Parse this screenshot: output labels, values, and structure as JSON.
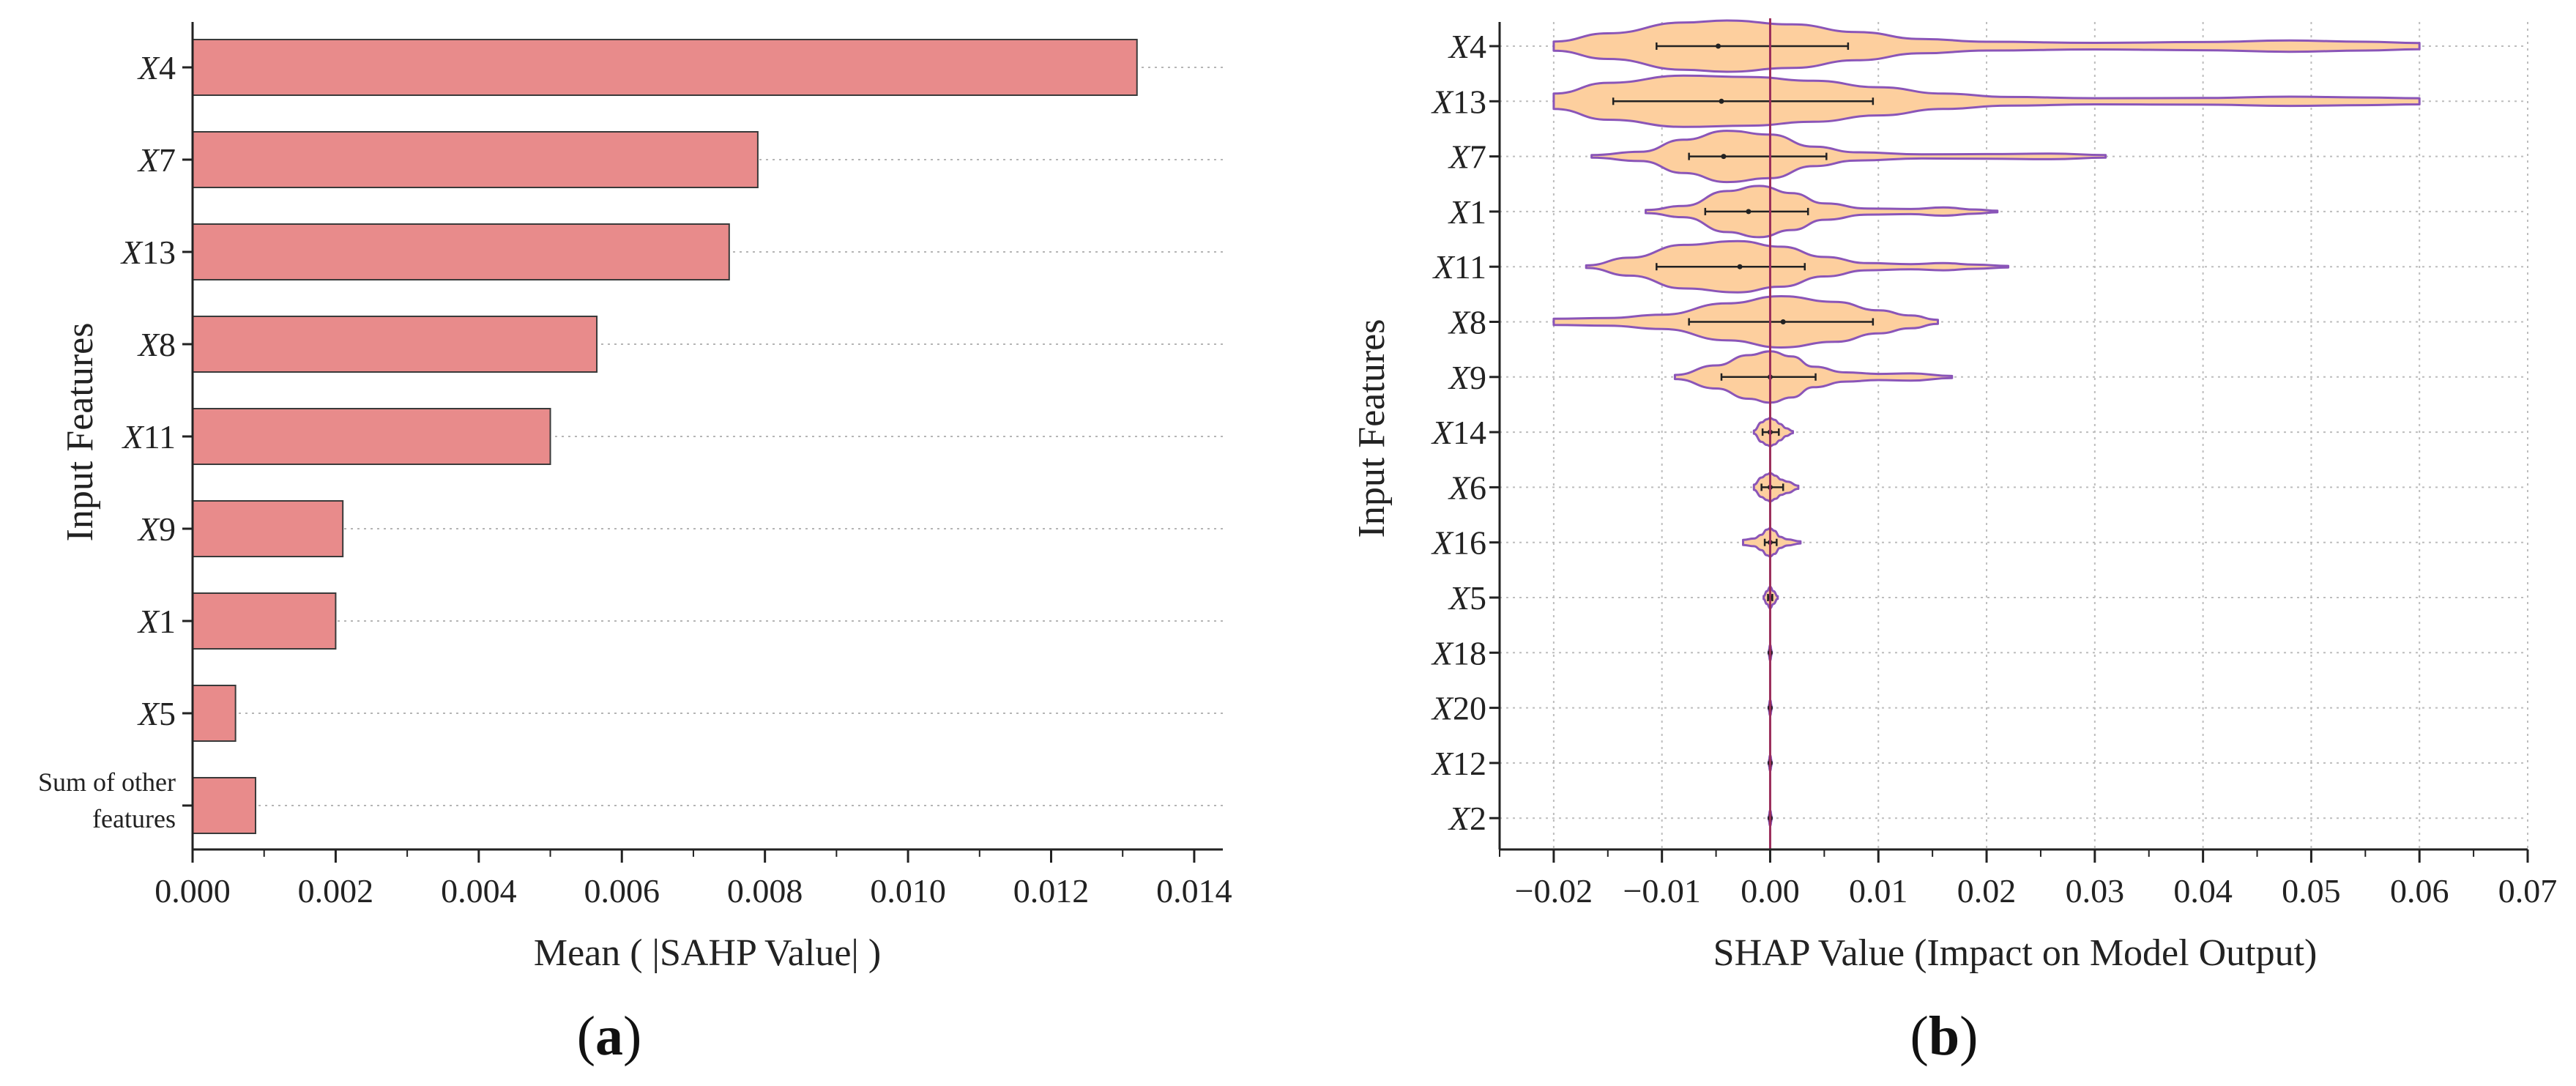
{
  "figure": {
    "label_a": "a",
    "label_b": "b"
  },
  "chart_data": [
    {
      "type": "bar",
      "orientation": "horizontal",
      "title": "",
      "xlabel": "Mean ( |SAHP Value| )",
      "ylabel": "Input Features",
      "categories": [
        "X4",
        "X7",
        "X13",
        "X8",
        "X11",
        "X9",
        "X1",
        "X5",
        "Sum of other features"
      ],
      "category_display": [
        {
          "base": "X",
          "sub": "4"
        },
        {
          "base": "X",
          "sub": "7"
        },
        {
          "base": "X",
          "sub": "13"
        },
        {
          "base": "X",
          "sub": "8"
        },
        {
          "base": "X",
          "sub": "11"
        },
        {
          "base": "X",
          "sub": "9"
        },
        {
          "base": "X",
          "sub": "1"
        },
        {
          "base": "X",
          "sub": "5"
        },
        {
          "lines": [
            "Sum of other",
            "features"
          ]
        }
      ],
      "values": [
        0.0132,
        0.0079,
        0.0075,
        0.00565,
        0.005,
        0.0021,
        0.002,
        0.0006,
        0.00088
      ],
      "xlim": [
        0,
        0.0144
      ],
      "xticks": [
        0,
        0.002,
        0.004,
        0.006,
        0.008,
        0.01,
        0.012,
        0.014
      ],
      "xtick_labels": [
        "0.000",
        "0.002",
        "0.004",
        "0.006",
        "0.008",
        "0.010",
        "0.012",
        "0.014"
      ],
      "grid": "horizontal dotted",
      "colors": {
        "bar": "#e88b8b",
        "edge": "#3a3a3a"
      }
    },
    {
      "type": "violin",
      "title": "",
      "xlabel": "SHAP Value (Impact on Model Output)",
      "ylabel": "Input Features",
      "categories": [
        "X4",
        "X13",
        "X7",
        "X1",
        "X11",
        "X8",
        "X9",
        "X14",
        "X6",
        "X16",
        "X5",
        "X18",
        "X20",
        "X12",
        "X2"
      ],
      "xlim": [
        -0.025,
        0.07
      ],
      "xticks": [
        -0.02,
        -0.01,
        0.0,
        0.01,
        0.02,
        0.03,
        0.04,
        0.05,
        0.06,
        0.07
      ],
      "xtick_labels": [
        "−0.02",
        "−0.01",
        "0.00",
        "0.01",
        "0.02",
        "0.03",
        "0.04",
        "0.05",
        "0.06",
        "0.07"
      ],
      "grid": "both dotted",
      "reference_line_x": 0.0,
      "colors": {
        "fill": "#fdcf9e",
        "edge": "#8a55b8",
        "whisker": "#222222",
        "refline": "#9b2d5b"
      },
      "series": [
        {
          "name": "X4",
          "min": -0.02,
          "max": 0.06,
          "q1": -0.0105,
          "median": -0.0048,
          "q3": 0.0072,
          "profile": [
            [
              -0.02,
              0.18
            ],
            [
              -0.015,
              0.5
            ],
            [
              -0.008,
              0.92
            ],
            [
              -0.004,
              1.0
            ],
            [
              0.002,
              0.85
            ],
            [
              0.008,
              0.55
            ],
            [
              0.014,
              0.28
            ],
            [
              0.02,
              0.17
            ],
            [
              0.03,
              0.13
            ],
            [
              0.04,
              0.16
            ],
            [
              0.048,
              0.22
            ],
            [
              0.055,
              0.17
            ],
            [
              0.06,
              0.12
            ]
          ]
        },
        {
          "name": "X13",
          "min": -0.02,
          "max": 0.06,
          "q1": -0.0145,
          "median": -0.0045,
          "q3": 0.0095,
          "profile": [
            [
              -0.02,
              0.3
            ],
            [
              -0.015,
              0.72
            ],
            [
              -0.008,
              1.0
            ],
            [
              -0.002,
              0.95
            ],
            [
              0.004,
              0.8
            ],
            [
              0.01,
              0.55
            ],
            [
              0.016,
              0.3
            ],
            [
              0.022,
              0.17
            ],
            [
              0.03,
              0.12
            ],
            [
              0.04,
              0.13
            ],
            [
              0.048,
              0.18
            ],
            [
              0.055,
              0.15
            ],
            [
              0.06,
              0.12
            ]
          ]
        },
        {
          "name": "X7",
          "min": -0.0165,
          "max": 0.031,
          "q1": -0.0075,
          "median": -0.0043,
          "q3": 0.0052,
          "profile": [
            [
              -0.0165,
              0.05
            ],
            [
              -0.012,
              0.18
            ],
            [
              -0.008,
              0.65
            ],
            [
              -0.004,
              1.0
            ],
            [
              0.0,
              0.85
            ],
            [
              0.004,
              0.38
            ],
            [
              0.008,
              0.16
            ],
            [
              0.014,
              0.08
            ],
            [
              0.02,
              0.09
            ],
            [
              0.026,
              0.11
            ],
            [
              0.031,
              0.05
            ]
          ]
        },
        {
          "name": "X1",
          "min": -0.0115,
          "max": 0.021,
          "q1": -0.006,
          "median": -0.002,
          "q3": 0.0035,
          "profile": [
            [
              -0.0115,
              0.06
            ],
            [
              -0.008,
              0.22
            ],
            [
              -0.004,
              0.8
            ],
            [
              -0.001,
              1.0
            ],
            [
              0.002,
              0.72
            ],
            [
              0.005,
              0.32
            ],
            [
              0.009,
              0.12
            ],
            [
              0.013,
              0.1
            ],
            [
              0.016,
              0.16
            ],
            [
              0.019,
              0.08
            ],
            [
              0.021,
              0.03
            ]
          ]
        },
        {
          "name": "X11",
          "min": -0.017,
          "max": 0.022,
          "q1": -0.0105,
          "median": -0.0028,
          "q3": 0.0032,
          "profile": [
            [
              -0.017,
              0.05
            ],
            [
              -0.013,
              0.35
            ],
            [
              -0.008,
              0.85
            ],
            [
              -0.003,
              1.0
            ],
            [
              0.001,
              0.78
            ],
            [
              0.005,
              0.38
            ],
            [
              0.009,
              0.14
            ],
            [
              0.013,
              0.1
            ],
            [
              0.016,
              0.14
            ],
            [
              0.019,
              0.08
            ],
            [
              0.022,
              0.03
            ]
          ]
        },
        {
          "name": "X8",
          "min": -0.02,
          "max": 0.0155,
          "q1": -0.0075,
          "median": 0.0012,
          "q3": 0.0095,
          "profile": [
            [
              -0.02,
              0.12
            ],
            [
              -0.015,
              0.15
            ],
            [
              -0.01,
              0.28
            ],
            [
              -0.004,
              0.72
            ],
            [
              0.001,
              1.0
            ],
            [
              0.006,
              0.78
            ],
            [
              0.01,
              0.45
            ],
            [
              0.013,
              0.25
            ],
            [
              0.0155,
              0.08
            ]
          ]
        },
        {
          "name": "X9",
          "min": -0.0088,
          "max": 0.0168,
          "q1": -0.0045,
          "median": 0.0,
          "q3": 0.0042,
          "profile": [
            [
              -0.0088,
              0.08
            ],
            [
              -0.005,
              0.45
            ],
            [
              -0.002,
              0.85
            ],
            [
              0.0,
              1.0
            ],
            [
              0.002,
              0.8
            ],
            [
              0.004,
              0.4
            ],
            [
              0.007,
              0.18
            ],
            [
              0.01,
              0.12
            ],
            [
              0.013,
              0.14
            ],
            [
              0.0168,
              0.04
            ]
          ]
        },
        {
          "name": "X14",
          "min": -0.0015,
          "max": 0.0021,
          "q1": -0.0007,
          "median": 0.0,
          "q3": 0.0008,
          "profile": [
            [
              -0.0015,
              0.06
            ],
            [
              -0.0008,
              0.38
            ],
            [
              -0.0003,
              0.5
            ],
            [
              0.0,
              0.55
            ],
            [
              0.0004,
              0.48
            ],
            [
              0.0009,
              0.32
            ],
            [
              0.0015,
              0.15
            ],
            [
              0.0021,
              0.04
            ]
          ]
        },
        {
          "name": "X6",
          "min": -0.0015,
          "max": 0.0026,
          "q1": -0.0008,
          "median": 0.0,
          "q3": 0.0012,
          "profile": [
            [
              -0.0015,
              0.1
            ],
            [
              -0.0008,
              0.38
            ],
            [
              -0.0003,
              0.5
            ],
            [
              0.0,
              0.55
            ],
            [
              0.0005,
              0.45
            ],
            [
              0.001,
              0.3
            ],
            [
              0.0016,
              0.22
            ],
            [
              0.0026,
              0.06
            ]
          ]
        },
        {
          "name": "X16",
          "min": -0.0025,
          "max": 0.0028,
          "q1": -0.0005,
          "median": 0.0,
          "q3": 0.0006,
          "profile": [
            [
              -0.0025,
              0.1
            ],
            [
              -0.0015,
              0.15
            ],
            [
              -0.0008,
              0.3
            ],
            [
              -0.0003,
              0.5
            ],
            [
              0.0,
              0.55
            ],
            [
              0.0004,
              0.45
            ],
            [
              0.0009,
              0.22
            ],
            [
              0.0016,
              0.12
            ],
            [
              0.0028,
              0.04
            ]
          ]
        },
        {
          "name": "X5",
          "min": -0.0006,
          "max": 0.0007,
          "q1": -0.0002,
          "median": 0.0,
          "q3": 0.0002,
          "profile": [
            [
              -0.0006,
              0.06
            ],
            [
              -0.0003,
              0.25
            ],
            [
              0.0,
              0.42
            ],
            [
              0.0003,
              0.25
            ],
            [
              0.0007,
              0.05
            ]
          ]
        },
        {
          "name": "X18",
          "min": -0.00015,
          "max": 0.00015,
          "q1": -5e-05,
          "median": 0.0,
          "q3": 5e-05,
          "profile": [
            [
              -0.00015,
              0.05
            ],
            [
              0.0,
              0.3
            ],
            [
              0.00015,
              0.05
            ]
          ]
        },
        {
          "name": "X20",
          "min": -0.00015,
          "max": 0.00015,
          "q1": -5e-05,
          "median": 0.0,
          "q3": 5e-05,
          "profile": [
            [
              -0.00015,
              0.05
            ],
            [
              0.0,
              0.3
            ],
            [
              0.00015,
              0.05
            ]
          ]
        },
        {
          "name": "X12",
          "min": -0.00015,
          "max": 0.00015,
          "q1": -5e-05,
          "median": 0.0,
          "q3": 5e-05,
          "profile": [
            [
              -0.00015,
              0.05
            ],
            [
              0.0,
              0.3
            ],
            [
              0.00015,
              0.05
            ]
          ]
        },
        {
          "name": "X2",
          "min": -0.00015,
          "max": 0.00015,
          "q1": -5e-05,
          "median": 0.0,
          "q3": 5e-05,
          "profile": [
            [
              -0.00015,
              0.05
            ],
            [
              0.0,
              0.3
            ],
            [
              0.00015,
              0.05
            ]
          ]
        }
      ]
    }
  ]
}
